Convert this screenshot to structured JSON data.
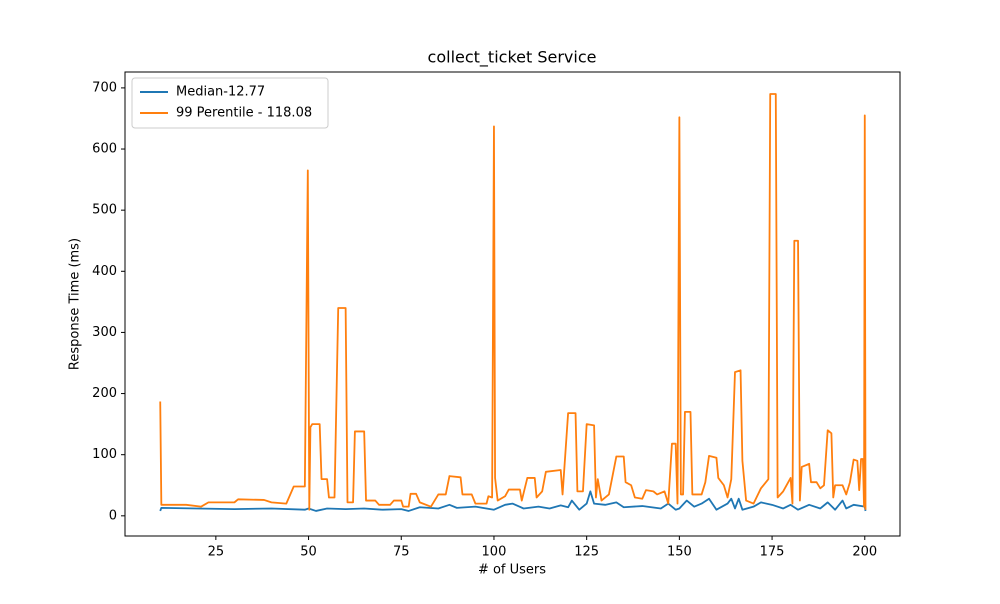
{
  "chart_data": {
    "type": "line",
    "title": "collect_ticket Service",
    "x_label": "# of Users",
    "y_label": "Response Time (ms)",
    "xlim": [
      0.5,
      209.5
    ],
    "ylim": [
      -33,
      726
    ],
    "xticks": [
      25,
      50,
      75,
      100,
      125,
      150,
      175,
      200
    ],
    "yticks": [
      0,
      100,
      200,
      300,
      400,
      500,
      600,
      700
    ],
    "legend": "upper-left",
    "grid": false,
    "series": [
      {
        "name": "Median-12.77",
        "color": "#1f77b4",
        "x": [
          10,
          10.3,
          20,
          30,
          40,
          49,
          50,
          52,
          55,
          60,
          65,
          70,
          75,
          77,
          80,
          85,
          88,
          90,
          95,
          100,
          103,
          105,
          108,
          112,
          115,
          118,
          120,
          121,
          123,
          125,
          126,
          127,
          130,
          133,
          135,
          140,
          145,
          147,
          149,
          150,
          152,
          154,
          156,
          158,
          160,
          163,
          164,
          165,
          166,
          167,
          170,
          172,
          175,
          178,
          180,
          182,
          185,
          188,
          190,
          192,
          194,
          195,
          197,
          200,
          200.2
        ],
        "values": [
          8,
          13,
          12,
          11,
          12,
          10,
          12,
          8,
          12,
          11,
          12,
          10,
          11,
          8,
          14,
          12,
          18,
          13,
          15,
          10,
          18,
          20,
          12,
          15,
          12,
          17,
          14,
          25,
          10,
          20,
          40,
          20,
          18,
          22,
          14,
          16,
          12,
          20,
          10,
          12,
          25,
          15,
          20,
          28,
          10,
          20,
          28,
          12,
          28,
          10,
          15,
          22,
          18,
          12,
          18,
          10,
          18,
          12,
          22,
          10,
          25,
          12,
          18,
          15,
          8
        ]
      },
      {
        "name": "99 Perentile - 118.08",
        "color": "#ff7f0e",
        "x": [
          10,
          10.3,
          17,
          21,
          23,
          30,
          31,
          38,
          40,
          44,
          46,
          49,
          49.8,
          50.2,
          50.5,
          51,
          53,
          53.5,
          55,
          55.5,
          57,
          58,
          60,
          60.5,
          62,
          62.5,
          65,
          65.5,
          68,
          69,
          72,
          73,
          75,
          75.5,
          77,
          77.5,
          79,
          80,
          83,
          85,
          87,
          88,
          91,
          91.5,
          94,
          95,
          98,
          98.5,
          99.5,
          100,
          100.3,
          101,
          103,
          104,
          107,
          107.5,
          109,
          111,
          111.5,
          113,
          114,
          118,
          118.5,
          120,
          122,
          122.5,
          124,
          125,
          127,
          127.5,
          128,
          129,
          131,
          133,
          135,
          135.5,
          137,
          138,
          140,
          141,
          143,
          144,
          146,
          147,
          148,
          149,
          149.5,
          150,
          150.4,
          151,
          151.5,
          153,
          153.5,
          156,
          157,
          158,
          160,
          160.5,
          162,
          163,
          164,
          165,
          166.5,
          167,
          168,
          170,
          172,
          174,
          174.5,
          176,
          176.5,
          178,
          180,
          180.5,
          181,
          182,
          182.5,
          183,
          185,
          185.5,
          187,
          188,
          189,
          190,
          191,
          191.5,
          192,
          194,
          195,
          196,
          197,
          198,
          198.5,
          199,
          199.5,
          199.8,
          200,
          200.2
        ],
        "values": [
          187,
          18,
          18,
          15,
          22,
          22,
          27,
          26,
          22,
          20,
          48,
          48,
          565,
          10,
          145,
          150,
          150,
          60,
          60,
          30,
          30,
          340,
          340,
          22,
          22,
          138,
          138,
          25,
          25,
          18,
          18,
          25,
          25,
          15,
          15,
          36,
          36,
          22,
          15,
          35,
          35,
          65,
          63,
          35,
          35,
          20,
          20,
          32,
          30,
          637,
          62,
          25,
          32,
          43,
          43,
          25,
          62,
          62,
          30,
          40,
          72,
          75,
          35,
          168,
          168,
          40,
          40,
          150,
          148,
          30,
          60,
          25,
          35,
          97,
          97,
          55,
          50,
          30,
          28,
          42,
          40,
          35,
          40,
          20,
          118,
          118,
          20,
          652,
          35,
          35,
          170,
          170,
          35,
          35,
          55,
          98,
          95,
          62,
          50,
          30,
          60,
          235,
          238,
          90,
          25,
          20,
          45,
          60,
          690,
          690,
          30,
          40,
          62,
          20,
          450,
          450,
          25,
          80,
          85,
          55,
          55,
          45,
          50,
          140,
          135,
          30,
          50,
          50,
          35,
          55,
          92,
          90,
          42,
          93,
          93,
          15,
          655,
          10
        ]
      }
    ]
  }
}
